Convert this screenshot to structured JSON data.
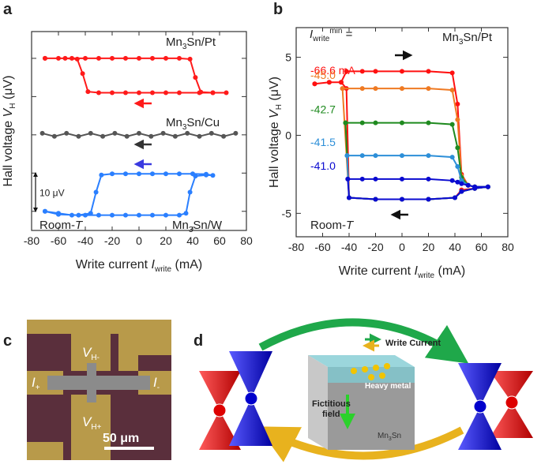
{
  "chart_data": [
    {
      "type": "line",
      "panel": "a",
      "xlabel": [
        "Write current ",
        "I",
        "write",
        " (mA)"
      ],
      "ylabel": [
        "Hall voltage ",
        "V",
        "H",
        " (μV)"
      ],
      "xlim": [
        -80,
        80
      ],
      "xticks": [
        -80,
        -60,
        -40,
        -20,
        0,
        20,
        40,
        60,
        80
      ],
      "ylim": [
        -25,
        27
      ],
      "yticks": [
        -20,
        -10,
        0,
        10,
        20
      ],
      "ytick_labels": false,
      "annotations": [
        [
          "Mn",
          "3",
          "Sn/Pt"
        ],
        [
          "Mn",
          "3",
          "Sn/Cu"
        ],
        [
          "Mn",
          "3",
          "Sn/W"
        ],
        [
          "Room-",
          "T"
        ]
      ],
      "scale_bar": {
        "label": "10 μV",
        "from": -20,
        "to": -10
      },
      "series": [
        {
          "color": "#ff1a1a",
          "x": [
            -70,
            -60,
            -50,
            -40,
            -30,
            -20,
            -10,
            0,
            10,
            20,
            30,
            38,
            42,
            46,
            55,
            65,
            55,
            45,
            30,
            20,
            10,
            0,
            -10,
            -20,
            -30,
            -38,
            -42,
            -46,
            -55,
            -70
          ],
          "values": [
            20,
            20,
            20,
            20,
            20,
            20,
            20,
            20,
            20,
            20,
            20,
            19.8,
            15,
            11.2,
            11,
            11,
            11,
            11,
            11,
            11,
            11,
            11,
            11,
            11,
            11,
            11.3,
            16,
            19.8,
            20,
            20
          ]
        },
        {
          "color": "#555555",
          "x": [
            -72,
            -63,
            -54,
            -45,
            -36,
            -27,
            -18,
            -9,
            0,
            9,
            18,
            27,
            36,
            45,
            54,
            63,
            72
          ],
          "values": [
            0.4,
            -0.4,
            0.4,
            -0.4,
            0.4,
            -0.4,
            0.4,
            -0.4,
            0.4,
            -0.4,
            0.4,
            -0.4,
            0.4,
            -0.4,
            0.4,
            -0.4,
            0.4
          ]
        },
        {
          "color": "#2a7fff",
          "x": [
            -70,
            -60,
            -50,
            -40,
            -30,
            -20,
            -10,
            0,
            10,
            20,
            30,
            35,
            38,
            42,
            50,
            55,
            50,
            40,
            30,
            20,
            10,
            0,
            -10,
            -20,
            -28,
            -32,
            -36,
            -45,
            -60,
            -70
          ],
          "values": [
            -20,
            -20.5,
            -21,
            -21,
            -21,
            -21,
            -21,
            -21,
            -21,
            -21,
            -21,
            -20.5,
            -15,
            -10.8,
            -10.5,
            -10.6,
            -10.3,
            -10.2,
            -10.2,
            -10.2,
            -10.2,
            -10.2,
            -10.2,
            -10.2,
            -10.5,
            -15,
            -20.5,
            -21,
            -20.8,
            -20
          ]
        }
      ]
    },
    {
      "type": "line",
      "panel": "b",
      "xlabel": [
        "Write current ",
        "I",
        "write",
        " (mA)"
      ],
      "ylabel": [
        "Hall voltage ",
        "V",
        "H",
        " (μV)"
      ],
      "xlim": [
        -80,
        80
      ],
      "xticks": [
        -80,
        -60,
        -40,
        -20,
        0,
        20,
        40,
        60,
        80
      ],
      "ylim": [
        -6.5,
        6.9
      ],
      "yticks": [
        -5,
        0,
        5
      ],
      "ytick_labels": true,
      "header": [
        "I",
        "write",
        "min",
        " ="
      ],
      "annotations": [
        [
          "Mn",
          "3",
          "Sn/Pt"
        ],
        [
          "Room-",
          "T"
        ]
      ],
      "series": [
        {
          "color": "#ff1010",
          "label": "-66.6 mA",
          "x": [
            -66,
            -55,
            -46,
            -42,
            -30,
            -20,
            0,
            20,
            38,
            42,
            45,
            50,
            55,
            65,
            55,
            45,
            40,
            20,
            0,
            -20,
            -40,
            -42,
            -46,
            -55,
            -66
          ],
          "values": [
            3.3,
            3.4,
            3.4,
            4.1,
            4.1,
            4.1,
            4.1,
            4.1,
            4.0,
            2.0,
            -2.5,
            -3.2,
            -3.3,
            -3.3,
            -3.4,
            -3.5,
            -4.0,
            -4.1,
            -4.1,
            -4.1,
            -4.0,
            3.0,
            3.4,
            3.4,
            3.3
          ]
        },
        {
          "color": "#ef7a23",
          "label": "-45.0",
          "x": [
            -45,
            -30,
            -20,
            0,
            20,
            38,
            42,
            45,
            50,
            55,
            65,
            55,
            45,
            40,
            20,
            0,
            -20,
            -40,
            -45
          ],
          "values": [
            3.0,
            3.0,
            3.0,
            3.0,
            3.0,
            2.9,
            1.0,
            -2.6,
            -3.2,
            -3.3,
            -3.3,
            -3.4,
            -3.6,
            -4.0,
            -4.1,
            -4.1,
            -4.1,
            -4.0,
            3.0
          ]
        },
        {
          "color": "#1f8a1f",
          "label": "-42.7",
          "x": [
            -42.7,
            -30,
            -20,
            0,
            20,
            38,
            42,
            45,
            50,
            55,
            65,
            55,
            45,
            40,
            20,
            0,
            -20,
            -40,
            -42.7
          ],
          "values": [
            0.8,
            0.8,
            0.8,
            0.8,
            0.8,
            0.7,
            -0.8,
            -2.7,
            -3.2,
            -3.3,
            -3.3,
            -3.4,
            -3.6,
            -4.0,
            -4.1,
            -4.1,
            -4.1,
            -4.0,
            0.8
          ]
        },
        {
          "color": "#2d8fd8",
          "label": "-41.5",
          "x": [
            -41.5,
            -30,
            -20,
            0,
            20,
            38,
            42,
            45,
            50,
            55,
            65,
            55,
            45,
            40,
            20,
            0,
            -20,
            -40,
            -41.5
          ],
          "values": [
            -1.3,
            -1.3,
            -1.3,
            -1.3,
            -1.3,
            -1.4,
            -2.0,
            -2.9,
            -3.2,
            -3.3,
            -3.3,
            -3.4,
            -3.6,
            -4.0,
            -4.1,
            -4.1,
            -4.1,
            -4.0,
            -1.3
          ]
        },
        {
          "color": "#0a0ad0",
          "label": "-41.0",
          "x": [
            -41,
            -30,
            -20,
            0,
            20,
            38,
            42,
            45,
            50,
            55,
            65,
            55,
            45,
            40,
            20,
            0,
            -20,
            -40,
            -41
          ],
          "values": [
            -2.8,
            -2.8,
            -2.8,
            -2.8,
            -2.8,
            -2.9,
            -3.0,
            -3.1,
            -3.2,
            -3.3,
            -3.3,
            -3.4,
            -3.6,
            -4.0,
            -4.1,
            -4.1,
            -4.1,
            -4.0,
            -2.8
          ]
        }
      ]
    }
  ],
  "panel_c": {
    "label": "c",
    "V_top": [
      "V",
      "H-"
    ],
    "I_left": [
      "I",
      "+"
    ],
    "I_right": [
      "I",
      "-"
    ],
    "V_bottom": [
      "V",
      "H+"
    ],
    "scale": "50 μm"
  },
  "panel_d": {
    "label": "d",
    "write_current": "Write Current",
    "heavy_metal": "Heavy metal",
    "fictitious": [
      "Fictitious",
      "field"
    ],
    "material": [
      "Mn",
      "3",
      "Sn"
    ]
  }
}
